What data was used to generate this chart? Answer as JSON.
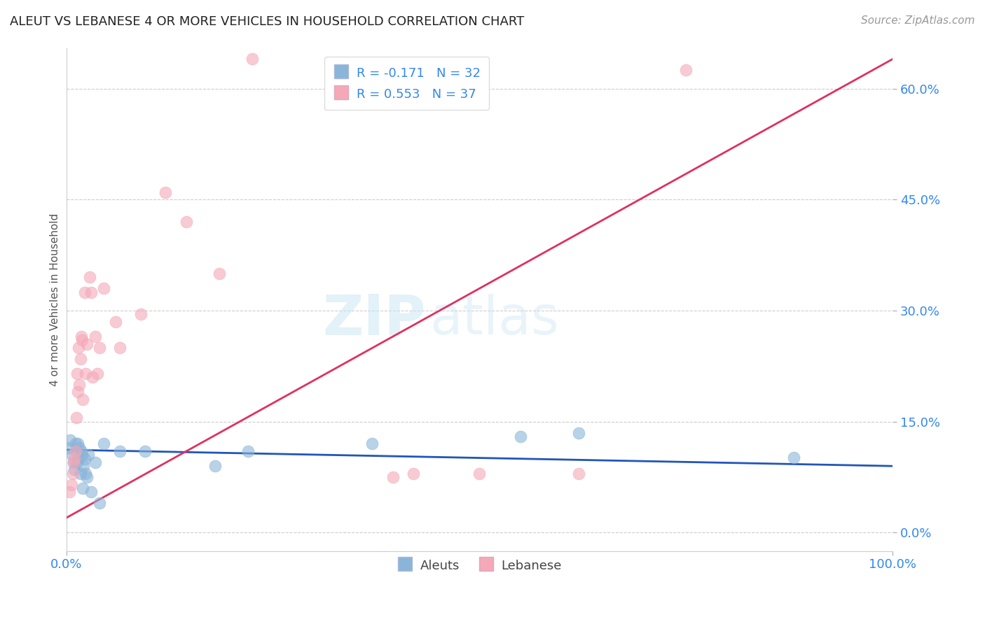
{
  "title": "ALEUT VS LEBANESE 4 OR MORE VEHICLES IN HOUSEHOLD CORRELATION CHART",
  "source": "Source: ZipAtlas.com",
  "ylabel": "4 or more Vehicles in Household",
  "legend_aleuts_r": "R = -0.171",
  "legend_aleuts_n": "N = 32",
  "legend_lebanese_r": "R = 0.553",
  "legend_lebanese_n": "N = 37",
  "aleut_color": "#8ab4d8",
  "lebanese_color": "#f4a8b8",
  "aleut_line_color": "#2255bb",
  "lebanese_line_color": "#e03060",
  "title_color": "#222222",
  "source_color": "#999999",
  "axis_label_color": "#3388ee",
  "grid_color": "#cccccc",
  "background_color": "#ffffff",
  "xmin": 0.0,
  "xmax": 1.0,
  "ymin": -0.025,
  "ymax": 0.655,
  "aleut_x": [
    0.003,
    0.005,
    0.007,
    0.009,
    0.01,
    0.011,
    0.012,
    0.013,
    0.014,
    0.015,
    0.016,
    0.017,
    0.018,
    0.019,
    0.02,
    0.021,
    0.022,
    0.023,
    0.025,
    0.027,
    0.03,
    0.035,
    0.04,
    0.045,
    0.065,
    0.095,
    0.18,
    0.22,
    0.37,
    0.55,
    0.62,
    0.88
  ],
  "aleut_y": [
    0.115,
    0.125,
    0.105,
    0.095,
    0.085,
    0.12,
    0.11,
    0.095,
    0.12,
    0.1,
    0.115,
    0.08,
    0.11,
    0.105,
    0.06,
    0.09,
    0.1,
    0.08,
    0.075,
    0.105,
    0.055,
    0.095,
    0.04,
    0.12,
    0.11,
    0.11,
    0.09,
    0.11,
    0.12,
    0.13,
    0.135,
    0.102
  ],
  "lebanese_x": [
    0.004,
    0.006,
    0.008,
    0.009,
    0.01,
    0.011,
    0.012,
    0.013,
    0.014,
    0.015,
    0.016,
    0.017,
    0.018,
    0.019,
    0.02,
    0.022,
    0.023,
    0.025,
    0.028,
    0.03,
    0.032,
    0.035,
    0.038,
    0.04,
    0.045,
    0.06,
    0.065,
    0.09,
    0.12,
    0.145,
    0.185,
    0.225,
    0.395,
    0.42,
    0.5,
    0.62,
    0.75
  ],
  "lebanese_y": [
    0.055,
    0.065,
    0.08,
    0.095,
    0.1,
    0.11,
    0.155,
    0.215,
    0.19,
    0.25,
    0.2,
    0.235,
    0.265,
    0.26,
    0.18,
    0.325,
    0.215,
    0.255,
    0.345,
    0.325,
    0.21,
    0.265,
    0.215,
    0.25,
    0.33,
    0.285,
    0.25,
    0.295,
    0.46,
    0.42,
    0.35,
    0.64,
    0.075,
    0.08,
    0.08,
    0.08,
    0.625
  ],
  "aleut_trendline_x": [
    0.0,
    1.0
  ],
  "aleut_trendline_y": [
    0.112,
    0.09
  ],
  "lebanese_trendline_x": [
    0.0,
    1.0
  ],
  "lebanese_trendline_y": [
    0.02,
    0.64
  ],
  "yticks": [
    0.0,
    0.15,
    0.3,
    0.45,
    0.6
  ],
  "ytick_labels": [
    "0.0%",
    "15.0%",
    "30.0%",
    "45.0%",
    "60.0%"
  ],
  "xticks": [
    0.0,
    1.0
  ],
  "xtick_labels": [
    "0.0%",
    "100.0%"
  ]
}
